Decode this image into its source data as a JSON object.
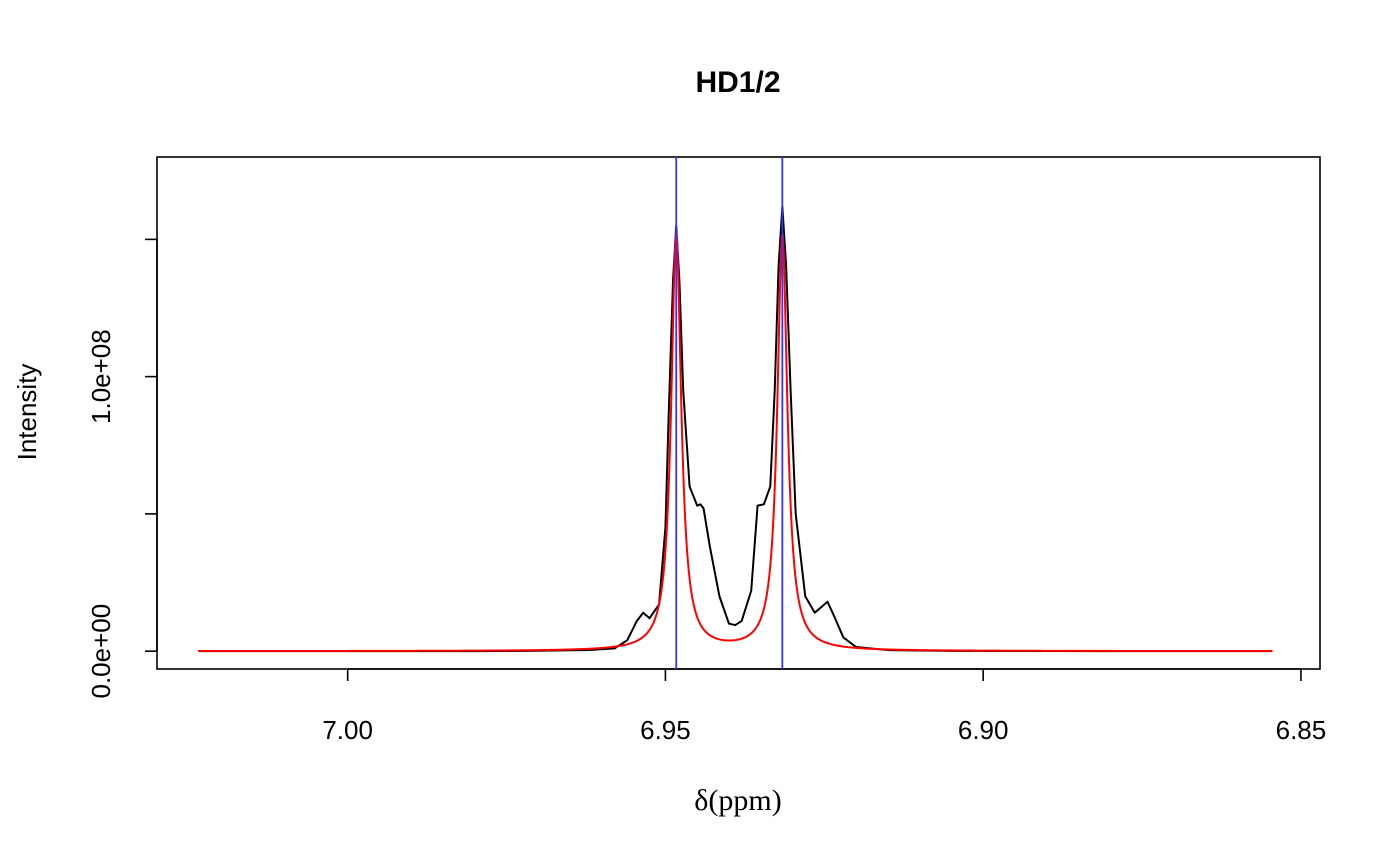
{
  "chart_data": {
    "type": "line",
    "title": "HD1/2",
    "xlabel": "δ(ppm)",
    "ylabel": "Intensity",
    "xlim": [
      7.03,
      6.847
    ],
    "ylim": [
      -6500000.0,
      180000000.0
    ],
    "x_axis_reversed": true,
    "x_ticks": [
      7.0,
      6.95,
      6.9,
      6.85
    ],
    "x_tick_labels": [
      "7.00",
      "6.95",
      "6.90",
      "6.85"
    ],
    "y_ticks": [
      0,
      50000000.0,
      100000000.0,
      150000000.0
    ],
    "y_tick_labels": [
      "0.0e+00",
      "",
      "1.0e+08",
      ""
    ],
    "grid": false,
    "vertical_lines": {
      "color": "#3333ff",
      "x": [
        6.9483,
        6.9316
      ]
    },
    "series": [
      {
        "color": "#000000",
        "points": [
          [
            7.0235,
            0
          ],
          [
            7.0,
            0
          ],
          [
            6.98,
            0
          ],
          [
            6.972,
            100000.0
          ],
          [
            6.962,
            400000.0
          ],
          [
            6.958,
            1000000.0
          ],
          [
            6.956,
            4000000.0
          ],
          [
            6.9545,
            11000000.0
          ],
          [
            6.9535,
            14000000.0
          ],
          [
            6.9525,
            12000000.0
          ],
          [
            6.951,
            17000000.0
          ],
          [
            6.95,
            45000000.0
          ],
          [
            6.9495,
            85000000.0
          ],
          [
            6.9488,
            135000000.0
          ],
          [
            6.9483,
            155000000.0
          ],
          [
            6.9478,
            135000000.0
          ],
          [
            6.9472,
            95000000.0
          ],
          [
            6.9462,
            60000000.0
          ],
          [
            6.945,
            53000000.0
          ],
          [
            6.9445,
            53500000.0
          ],
          [
            6.944,
            52000000.0
          ],
          [
            6.943,
            38000000.0
          ],
          [
            6.9415,
            20000000.0
          ],
          [
            6.94,
            10000000.0
          ],
          [
            6.939,
            9500000.0
          ],
          [
            6.938,
            11000000.0
          ],
          [
            6.9365,
            22000000.0
          ],
          [
            6.9355,
            53000000.0
          ],
          [
            6.9345,
            53500000.0
          ],
          [
            6.9335,
            60000000.0
          ],
          [
            6.9328,
            95000000.0
          ],
          [
            6.9322,
            140000000.0
          ],
          [
            6.9316,
            162000000.0
          ],
          [
            6.931,
            140000000.0
          ],
          [
            6.9303,
            95000000.0
          ],
          [
            6.9295,
            50000000.0
          ],
          [
            6.928,
            20000000.0
          ],
          [
            6.9265,
            14000000.0
          ],
          [
            6.9255,
            16000000.0
          ],
          [
            6.9245,
            18000000.0
          ],
          [
            6.9235,
            13000000.0
          ],
          [
            6.922,
            5000000.0
          ],
          [
            6.92,
            1500000.0
          ],
          [
            6.915,
            400000.0
          ],
          [
            6.905,
            100000.0
          ],
          [
            6.88,
            0
          ],
          [
            6.8545,
            0
          ]
        ]
      },
      {
        "color": "#ff0000",
        "model": "lorentzian_sum",
        "peaks": [
          {
            "center": 6.9483,
            "height": 152000000.0,
            "hwhm": 0.00095
          },
          {
            "center": 6.9316,
            "height": 152000000.0,
            "hwhm": 0.00095
          }
        ],
        "x_range": [
          7.0235,
          6.8545
        ]
      }
    ]
  }
}
